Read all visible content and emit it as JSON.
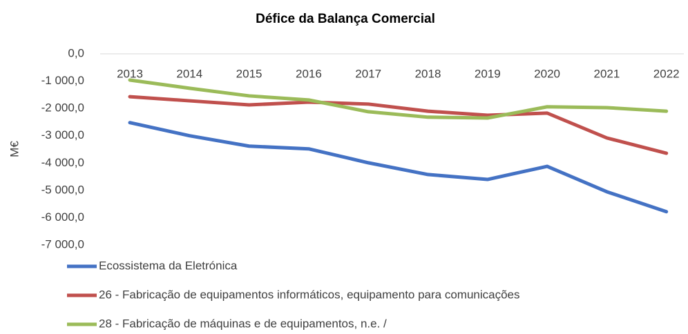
{
  "chart_data": {
    "type": "line",
    "title": "Défice da Balança Comercial",
    "y_label": "M€",
    "categories": [
      "2013",
      "2014",
      "2015",
      "2016",
      "2017",
      "2018",
      "2019",
      "2020",
      "2021",
      "2022"
    ],
    "series": [
      {
        "name": "Ecossistema da Eletrónica",
        "color": "#4472c4",
        "values": [
          -2520,
          -3000,
          -3380,
          -3480,
          -3990,
          -4420,
          -4600,
          -4120,
          -5050,
          -5780
        ]
      },
      {
        "name": "26 - Fabricação de equipamentos informáticos, equipamento para comunicações",
        "color": "#c0504d",
        "values": [
          -1570,
          -1720,
          -1870,
          -1770,
          -1840,
          -2100,
          -2250,
          -2170,
          -3080,
          -3640
        ]
      },
      {
        "name": "28 - Fabricação de máquinas e de equipamentos, n.e. /",
        "color": "#9bbb59",
        "values": [
          -960,
          -1260,
          -1540,
          -1690,
          -2120,
          -2320,
          -2350,
          -1940,
          -1970,
          -2100
        ]
      }
    ],
    "ylim": [
      -7000,
      0
    ],
    "yticks": [
      {
        "value": -7000,
        "label": "-7 000,0"
      },
      {
        "value": -6000,
        "label": "-6 000,0"
      },
      {
        "value": -5000,
        "label": "-5 000,0"
      },
      {
        "value": -4000,
        "label": "-4 000,0"
      },
      {
        "value": -3000,
        "label": "-3 000,0"
      },
      {
        "value": -2000,
        "label": "-2 000,0"
      },
      {
        "value": -1000,
        "label": "-1 000,0"
      },
      {
        "value": 0,
        "label": "0,0"
      }
    ],
    "grid": false,
    "legend": "bottom"
  }
}
